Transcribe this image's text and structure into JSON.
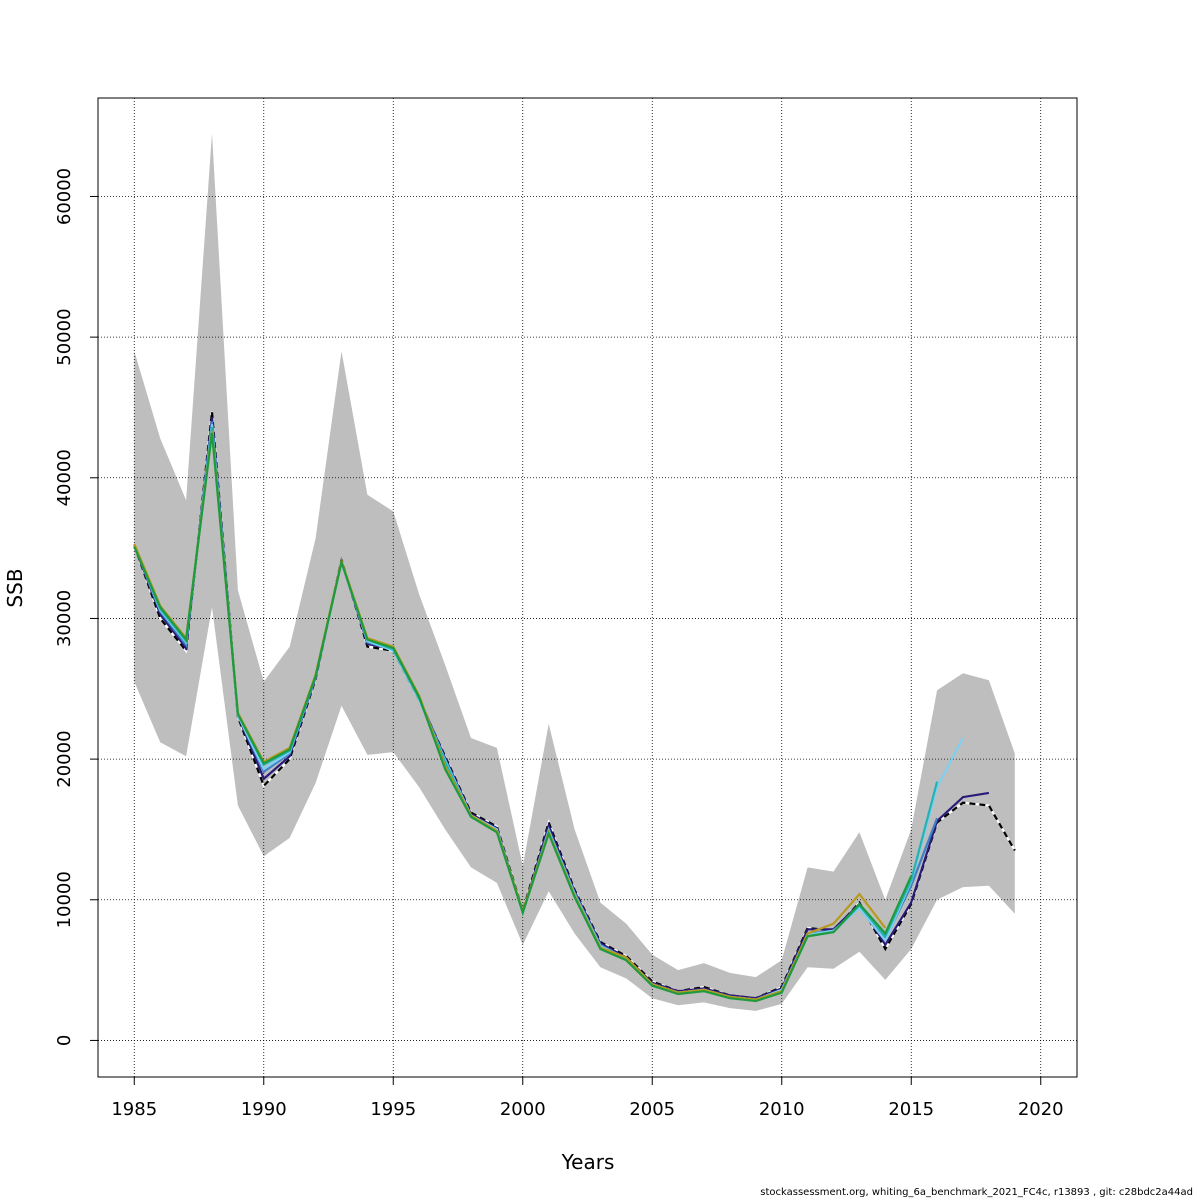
{
  "chart_data": {
    "type": "line",
    "title": "",
    "xlabel": "Years",
    "ylabel": "SSB",
    "xlim": [
      1983.6,
      2021.4
    ],
    "ylim": [
      -2600,
      67000
    ],
    "x_ticks": [
      "1985",
      "1990",
      "1995",
      "2000",
      "2005",
      "2010",
      "2015",
      "2020"
    ],
    "y_ticks": [
      "0",
      "10000",
      "20000",
      "30000",
      "40000",
      "50000",
      "60000"
    ],
    "grid": true,
    "confidence_band": {
      "color": "#bebebe",
      "years": [
        1985,
        1986,
        1987,
        1988,
        1989,
        1990,
        1991,
        1992,
        1993,
        1994,
        1995,
        1996,
        1997,
        1998,
        1999,
        2000,
        2001,
        2002,
        2003,
        2004,
        2005,
        2006,
        2007,
        2008,
        2009,
        2010,
        2011,
        2012,
        2013,
        2014,
        2015,
        2016,
        2017,
        2018,
        2019
      ],
      "upper": [
        49000,
        42800,
        38400,
        64500,
        32000,
        25500,
        28000,
        35700,
        49000,
        38800,
        37600,
        31700,
        26700,
        21500,
        20800,
        12400,
        22500,
        15000,
        9800,
        8300,
        6100,
        5000,
        5500,
        4800,
        4500,
        5700,
        12300,
        12000,
        14800,
        10000,
        15000,
        24900,
        26100,
        25600,
        20400
      ],
      "lower": [
        25500,
        21200,
        20200,
        30800,
        16700,
        13100,
        14400,
        18300,
        23800,
        20300,
        20500,
        18000,
        15000,
        12300,
        11200,
        6800,
        10600,
        7600,
        5200,
        4400,
        3000,
        2500,
        2700,
        2300,
        2100,
        2600,
        5200,
        5100,
        6300,
        4300,
        6500,
        10000,
        10900,
        11000,
        9000
      ]
    },
    "series": [
      {
        "color": "#000000",
        "dashed": true,
        "x": [
          1985,
          1986,
          1987,
          1988,
          1989,
          1990,
          1991,
          1992,
          1993,
          1994,
          1995,
          1996,
          1997,
          1998,
          1999,
          2000,
          2001,
          2002,
          2003,
          2004,
          2005,
          2006,
          2007,
          2008,
          2009,
          2010,
          2011,
          2012,
          2013,
          2014,
          2015,
          2016,
          2017,
          2018,
          2019
        ],
        "values": [
          35200,
          30000,
          27700,
          44700,
          23000,
          18100,
          20000,
          25700,
          34200,
          28000,
          27700,
          24200,
          20200,
          16200,
          15200,
          9200,
          15500,
          10700,
          7000,
          6000,
          4200,
          3500,
          3800,
          3200,
          3000,
          3800,
          8000,
          7800,
          9800,
          6500,
          9700,
          15500,
          16900,
          16700,
          13500
        ]
      },
      {
        "color": "#2b1a78",
        "dashed": false,
        "x": [
          1985,
          1986,
          1987,
          1988,
          1989,
          1990,
          1991,
          1992,
          1993,
          1994,
          1995,
          1996,
          1997,
          1998,
          1999,
          2000,
          2001,
          2002,
          2003,
          2004,
          2005,
          2006,
          2007,
          2008,
          2009,
          2010,
          2011,
          2012,
          2013,
          2014,
          2015,
          2016,
          2017,
          2018
        ],
        "values": [
          35200,
          30300,
          27900,
          44300,
          23100,
          18600,
          20200,
          25800,
          34100,
          28200,
          27800,
          24300,
          20100,
          16100,
          15100,
          9100,
          15300,
          10600,
          6900,
          5900,
          4100,
          3500,
          3700,
          3200,
          3000,
          3700,
          7900,
          7900,
          9700,
          6800,
          9800,
          15600,
          17300,
          17600
        ]
      },
      {
        "color": "#3f7fc4",
        "dashed": false,
        "x": [
          1985,
          1986,
          1987,
          1988,
          1989,
          1990,
          1991,
          1992,
          1993,
          1994,
          1995,
          1996,
          1997,
          1998,
          1999,
          2000,
          2001,
          2002,
          2003,
          2004,
          2005,
          2006,
          2007,
          2008,
          2009,
          2010,
          2011,
          2012,
          2013,
          2014,
          2015,
          2016
        ],
        "values": [
          35200,
          30500,
          28100,
          44000,
          23100,
          19100,
          20400,
          25800,
          34100,
          28300,
          27800,
          24300,
          20000,
          16000,
          15000,
          9100,
          15000,
          10500,
          6800,
          5800,
          4000,
          3400,
          3600,
          3100,
          2900,
          3600,
          7600,
          7800,
          9500,
          7200,
          11000,
          15800
        ]
      },
      {
        "color": "#7fcff0",
        "dashed": false,
        "x": [
          1985,
          1986,
          1987,
          1988,
          1989,
          1990,
          1991,
          1992,
          1993,
          1994,
          1995,
          1996,
          1997,
          1998,
          1999,
          2000,
          2001,
          2002,
          2003,
          2004,
          2005,
          2006,
          2007,
          2008,
          2009,
          2010,
          2011,
          2012,
          2013,
          2014,
          2015,
          2016,
          2017
        ],
        "values": [
          35200,
          30600,
          28300,
          43800,
          23100,
          19300,
          20500,
          25900,
          34000,
          28400,
          27700,
          24200,
          19900,
          16000,
          15000,
          9100,
          14900,
          10400,
          6700,
          5800,
          4000,
          3400,
          3600,
          3100,
          2900,
          3600,
          7500,
          7800,
          9400,
          7100,
          11300,
          18000,
          21500
        ]
      },
      {
        "color": "#22b3b3",
        "dashed": false,
        "x": [
          1985,
          1986,
          1987,
          1988,
          1989,
          1990,
          1991,
          1992,
          1993,
          1994,
          1995,
          1996,
          1997,
          1998,
          1999,
          2000,
          2001,
          2002,
          2003,
          2004,
          2005,
          2006,
          2007,
          2008,
          2009,
          2010,
          2011,
          2012,
          2013,
          2014,
          2015,
          2016
        ],
        "values": [
          35200,
          30700,
          28400,
          43600,
          23200,
          19600,
          20600,
          25900,
          34000,
          28500,
          27800,
          24300,
          19800,
          15900,
          14900,
          9100,
          14800,
          10300,
          6600,
          5800,
          4000,
          3400,
          3600,
          3100,
          2900,
          3500,
          7400,
          7700,
          9600,
          7400,
          11400,
          18400
        ]
      },
      {
        "color": "#b89a1e",
        "dashed": false,
        "x": [
          1985,
          1986,
          1987,
          1988,
          1989,
          1990,
          1991,
          1992,
          1993,
          1994,
          1995,
          1996,
          1997,
          1998,
          1999,
          2000,
          2001,
          2002,
          2003,
          2004,
          2005,
          2006,
          2007,
          2008,
          2009,
          2010,
          2011,
          2012,
          2013,
          2014
        ],
        "values": [
          35300,
          30900,
          28600,
          43300,
          23300,
          19800,
          20800,
          26000,
          34100,
          28600,
          28000,
          24500,
          19500,
          16000,
          14900,
          9200,
          14800,
          10300,
          6600,
          5900,
          4000,
          3400,
          3600,
          3100,
          2900,
          3500,
          7600,
          8300,
          10400,
          8000
        ]
      },
      {
        "color": "#1f9a3c",
        "dashed": false,
        "x": [
          1985,
          1986,
          1987,
          1988,
          1989,
          1990,
          1991,
          1992,
          1993,
          1994,
          1995,
          1996,
          1997,
          1998,
          1999,
          2000,
          2001,
          2002,
          2003,
          2004,
          2005,
          2006,
          2007,
          2008,
          2009,
          2010,
          2011,
          2012,
          2013,
          2014,
          2015
        ],
        "values": [
          35100,
          30800,
          28500,
          43200,
          23200,
          19700,
          20700,
          25900,
          34000,
          28500,
          27900,
          24400,
          19300,
          15900,
          14800,
          9100,
          14700,
          10200,
          6500,
          5700,
          3900,
          3300,
          3500,
          3000,
          2800,
          3400,
          7400,
          7700,
          9700,
          7600,
          11700
        ]
      }
    ]
  },
  "footer_text": "stockassessment.org, whiting_6a_benchmark_2021_FC4c, r13893 , git: c28bdc2a44ad"
}
